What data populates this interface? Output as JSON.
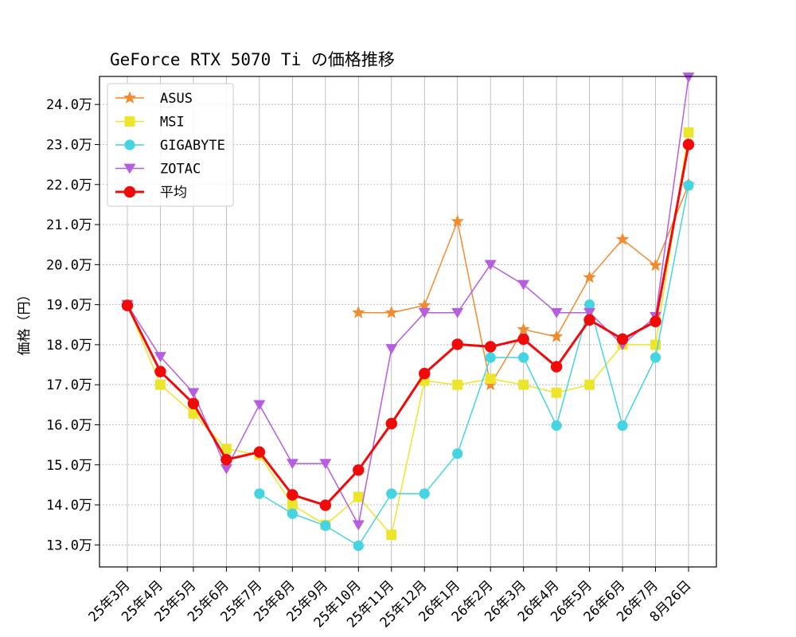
{
  "chart_data": {
    "type": "line",
    "title": "GeForce RTX 5070 Ti の価格推移",
    "xlabel": "",
    "ylabel": "価格（円）",
    "ylim": [
      124500,
      247000
    ],
    "yticks": [
      130000,
      140000,
      150000,
      160000,
      170000,
      180000,
      190000,
      200000,
      210000,
      220000,
      230000,
      240000
    ],
    "ytick_labels": [
      "13.0万",
      "14.0万",
      "15.0万",
      "16.0万",
      "17.0万",
      "18.0万",
      "19.0万",
      "20.0万",
      "21.0万",
      "22.0万",
      "23.0万",
      "24.0万"
    ],
    "grid": true,
    "legend_position": "top-left",
    "categories": [
      "25年3月",
      "25年4月",
      "25年5月",
      "25年6月",
      "25年7月",
      "25年8月",
      "25年9月",
      "25年10月",
      "25年11月",
      "25年12月",
      "26年1月",
      "26年2月",
      "26年3月",
      "26年4月",
      "26年5月",
      "26年6月",
      "26年7月",
      "8月26日"
    ],
    "series": [
      {
        "name": "ASUS",
        "color": "#f28a2e",
        "marker": "star",
        "values": [
          null,
          null,
          null,
          null,
          null,
          null,
          null,
          188000,
          188000,
          189800,
          210800,
          170000,
          183800,
          182000,
          196800,
          206300,
          199800,
          220000
        ]
      },
      {
        "name": "MSI",
        "color": "#ede52a",
        "marker": "square",
        "values": [
          190000,
          170000,
          162800,
          154000,
          152500,
          140000,
          135000,
          142000,
          132500,
          171000,
          170000,
          171500,
          170000,
          168000,
          170000,
          180000,
          180000,
          233000
        ]
      },
      {
        "name": "GIGABYTE",
        "color": "#45d4e2",
        "marker": "circle",
        "values": [
          null,
          null,
          null,
          null,
          142800,
          137800,
          134800,
          129800,
          142800,
          142800,
          152800,
          176800,
          176800,
          159800,
          190000,
          159800,
          176800,
          219800
        ]
      },
      {
        "name": "ZOTAC",
        "color": "#b65de0",
        "marker": "triangle-down",
        "values": [
          190000,
          177000,
          168000,
          149000,
          165000,
          150300,
          150300,
          135000,
          179000,
          188000,
          188000,
          200000,
          195000,
          188000,
          188000,
          180000,
          187000,
          246800
        ]
      },
      {
        "name": "平均",
        "color": "#f00a0a",
        "marker": "circle",
        "bold": true,
        "values": [
          189800,
          173300,
          165300,
          151300,
          153200,
          142500,
          139900,
          148700,
          160300,
          172800,
          180100,
          179500,
          181400,
          174500,
          186200,
          181400,
          185800,
          230000
        ]
      }
    ]
  }
}
